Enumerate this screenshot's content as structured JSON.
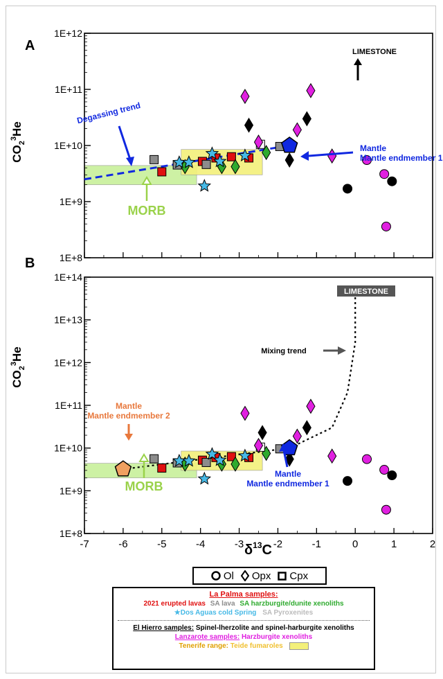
{
  "chart_data": [
    {
      "panel": "A",
      "type": "scatter",
      "xlabel": "",
      "ylabel": "CO2/3He",
      "xlim": [
        -7,
        2
      ],
      "ylim": [
        100000000.0,
        1000000000000.0
      ],
      "yscale": "log",
      "yticks": [
        "1E+12",
        "1E+11",
        "1E+10",
        "1E+9",
        "1E+8"
      ],
      "annotations": [
        "LIMESTONE",
        "Degassing trend",
        "Mantle endmember 1",
        "MORB"
      ],
      "series": [
        {
          "name": "2021 erupted lavas",
          "marker": "square",
          "color": "#e01010",
          "points": [
            [
              -5,
              3400000000.0
            ],
            [
              -3.95,
              5200000000.0
            ],
            [
              -3.6,
              6000000000.0
            ],
            [
              -3.2,
              6300000000.0
            ],
            [
              -2.75,
              6000000000.0
            ]
          ]
        },
        {
          "name": "SA lava",
          "marker": "square",
          "color": "#8c8c8c",
          "points": [
            [
              -5.2,
              5600000000.0
            ],
            [
              -4.6,
              4500000000.0
            ],
            [
              -3.85,
              4600000000.0
            ],
            [
              -1.95,
              9600000000.0
            ]
          ]
        },
        {
          "name": "SA harzburgite/dunite xenoliths",
          "marker": "diamond",
          "color": "#2eaa2e",
          "points": [
            [
              -4.4,
              4200000000.0
            ],
            [
              -3.45,
              4200000000.0
            ],
            [
              -3.1,
              4200000000.0
            ],
            [
              -2.3,
              7500000000.0
            ]
          ]
        },
        {
          "name": "Dos Aguas cold Spring",
          "marker": "star",
          "color": "#46b9e6",
          "points": [
            [
              -4.55,
              5000000000.0
            ],
            [
              -4.3,
              5000000000.0
            ],
            [
              -3.7,
              7200000000.0
            ],
            [
              -3.5,
              5200000000.0
            ],
            [
              -2.85,
              6600000000.0
            ],
            [
              -3.9,
              1900000000.0
            ]
          ]
        },
        {
          "name": "SA Pyroxenites",
          "marker": "square",
          "color": "#ffffff",
          "points": [
            [
              -2.45,
              10500000000.0
            ]
          ]
        },
        {
          "name": "El Hierro samples",
          "marker": "mixed",
          "color": "#000000",
          "points": [
            [
              -2.75,
              23000000000.0
            ],
            [
              -1.25,
              30000000000.0
            ],
            [
              -0.2,
              1700000000.0
            ],
            [
              0.95,
              2300000000.0
            ],
            [
              -1.7,
              5500000000.0
            ]
          ]
        },
        {
          "name": "Lanzarote samples",
          "marker": "mixed",
          "color": "#e020e0",
          "points": [
            [
              -2.85,
              75000000000.0
            ],
            [
              -1.15,
              95000000000.0
            ],
            [
              -2.5,
              11500000000.0
            ],
            [
              -1.5,
              19000000000.0
            ],
            [
              -0.6,
              6500000000.0
            ],
            [
              0.3,
              5500000000.0
            ],
            [
              0.75,
              3100000000.0
            ],
            [
              0.8,
              360000000.0
            ]
          ]
        },
        {
          "name": "Mantle endmember 1",
          "marker": "pentagon",
          "color": "#1028e0",
          "points": [
            [
              -1.7,
              10000000000.0
            ]
          ]
        }
      ],
      "ranges": [
        {
          "name": "MORB",
          "x": [
            -7,
            -4.1
          ],
          "y": [
            2000000000.0,
            4400000000.0
          ],
          "color": "#c8f09a"
        },
        {
          "name": "Tenerife range",
          "x": [
            -4.5,
            -2.4
          ],
          "y": [
            3000000000.0,
            8500000000.0
          ],
          "color": "#f3f07a"
        }
      ],
      "lines": [
        {
          "name": "Degassing trend",
          "style": "dashed",
          "color": "#1028e0",
          "points": [
            [
              -7,
              2500000000.0
            ],
            [
              -1.7,
              10000000000.0
            ]
          ]
        }
      ]
    },
    {
      "panel": "B",
      "type": "scatter",
      "xlabel": "δ13C",
      "ylabel": "CO2/3He",
      "xlim": [
        -7,
        2
      ],
      "ylim": [
        100000000.0,
        100000000000000.0
      ],
      "yscale": "log",
      "yticks": [
        "1E+14",
        "1E+13",
        "1E+12",
        "1E+11",
        "1E+10",
        "1E+9",
        "1E+8"
      ],
      "xticks": [
        "-7",
        "-6",
        "-5",
        "-4",
        "-3",
        "-2",
        "-1",
        "0",
        "1",
        "2"
      ],
      "annotations": [
        "LIMESTONE",
        "Mixing trend",
        "Mantle endmember 2",
        "Mantle endmember 1",
        "MORB"
      ],
      "series": [
        {
          "name": "2021 erupted lavas",
          "marker": "square",
          "color": "#e01010",
          "points": [
            [
              -5,
              3400000000.0
            ],
            [
              -3.95,
              5200000000.0
            ],
            [
              -3.6,
              6000000000.0
            ],
            [
              -3.2,
              6300000000.0
            ],
            [
              -2.75,
              6000000000.0
            ]
          ]
        },
        {
          "name": "SA lava",
          "marker": "square",
          "color": "#8c8c8c",
          "points": [
            [
              -5.2,
              5600000000.0
            ],
            [
              -4.6,
              4500000000.0
            ],
            [
              -3.85,
              4600000000.0
            ],
            [
              -1.95,
              9600000000.0
            ]
          ]
        },
        {
          "name": "SA harzburgite/dunite xenoliths",
          "marker": "diamond",
          "color": "#2eaa2e",
          "points": [
            [
              -4.4,
              4200000000.0
            ],
            [
              -3.45,
              4200000000.0
            ],
            [
              -3.1,
              4200000000.0
            ],
            [
              -2.3,
              7500000000.0
            ]
          ]
        },
        {
          "name": "Dos Aguas cold Spring",
          "marker": "star",
          "color": "#46b9e6",
          "points": [
            [
              -4.55,
              5000000000.0
            ],
            [
              -4.3,
              5000000000.0
            ],
            [
              -3.7,
              7200000000.0
            ],
            [
              -3.5,
              5200000000.0
            ],
            [
              -2.85,
              6600000000.0
            ],
            [
              -3.9,
              1900000000.0
            ]
          ]
        },
        {
          "name": "SA Pyroxenites",
          "marker": "square",
          "color": "#ffffff",
          "points": [
            [
              -2.45,
              10500000000.0
            ]
          ]
        },
        {
          "name": "El Hierro samples",
          "marker": "mixed",
          "color": "#000000",
          "points": [
            [
              -2.4,
              23000000000.0
            ],
            [
              -1.25,
              30000000000.0
            ],
            [
              -0.2,
              1700000000.0
            ],
            [
              0.95,
              2300000000.0
            ],
            [
              -1.7,
              5500000000.0
            ]
          ]
        },
        {
          "name": "Lanzarote samples",
          "marker": "mixed",
          "color": "#e020e0",
          "points": [
            [
              -2.85,
              65000000000.0
            ],
            [
              -1.15,
              95000000000.0
            ],
            [
              -2.5,
              11500000000.0
            ],
            [
              -1.5,
              19000000000.0
            ],
            [
              -0.6,
              6500000000.0
            ],
            [
              0.3,
              5500000000.0
            ],
            [
              0.75,
              3100000000.0
            ],
            [
              0.8,
              360000000.0
            ]
          ]
        },
        {
          "name": "Mantle endmember 1",
          "marker": "pentagon",
          "color": "#1028e0",
          "points": [
            [
              -1.7,
              10000000000.0
            ]
          ]
        },
        {
          "name": "Mantle endmember 2",
          "marker": "pentagon",
          "color": "#f0a060",
          "points": [
            [
              -6,
              3200000000.0
            ]
          ]
        }
      ],
      "ranges": [
        {
          "name": "MORB",
          "x": [
            -7,
            -4.1
          ],
          "y": [
            2000000000.0,
            4400000000.0
          ],
          "color": "#c8f09a"
        },
        {
          "name": "Tenerife range",
          "x": [
            -4.5,
            -2.4
          ],
          "y": [
            3000000000.0,
            8500000000.0
          ],
          "color": "#f3f07a"
        }
      ],
      "lines": [
        {
          "name": "Mantle endmember 2 to 1",
          "style": "dotted",
          "color": "#000000",
          "points": [
            [
              -6,
              3200000000.0
            ],
            [
              -1.7,
              10000000000.0
            ]
          ]
        },
        {
          "name": "Mixing trend",
          "style": "dotted",
          "color": "#000000",
          "points": [
            [
              -1.7,
              10000000000.0
            ],
            [
              -0.6,
              30000000000.0
            ],
            [
              -0.2,
              200000000000.0
            ],
            [
              0,
              3000000000000.0
            ],
            [
              0,
              40000000000000.0
            ]
          ]
        }
      ]
    }
  ],
  "panels": {
    "a": {
      "label": "A",
      "ylabel_main": "CO",
      "ylabel_sub": "2",
      "ylabel_sup": "3",
      "ylabel_tail": "He",
      "ann_limestone": "LIMESTONE",
      "ann_degassing": "Degassing trend",
      "ann_mantle1": "Mantle endmember 1",
      "ann_morb": "MORB"
    },
    "b": {
      "label": "B",
      "ylabel_main": "CO",
      "ylabel_sub": "2",
      "ylabel_sup": "3",
      "ylabel_tail": "He",
      "ann_limestone": "LIMESTONE",
      "ann_mixing": "Mixing trend",
      "ann_mantle2": "Mantle endmember 2",
      "ann_mantle1": "Mantle endmember 1",
      "ann_morb": "MORB",
      "xlabel_main": "δ",
      "xlabel_sup": "13",
      "xlabel_tail": "C"
    }
  },
  "legend": {
    "shapes": {
      "ol": "Ol",
      "opx": "Opx",
      "cpx": "Cpx"
    },
    "la_palma_title": "La Palma samples:",
    "lavas": "2021 erupted lavas",
    "sa_lava": "SA lava",
    "sa_xenoliths": "SA harzburgite/dunite xenoliths",
    "dos_aguas": "Dos Aguas cold Spring",
    "pyroxenites": "SA Pyroxenites",
    "el_hierro_title": "El Hierro samples:",
    "el_hierro_text": "Spinel-lherzolite and spinel-harburgite xenoliths",
    "lanzarote_title": "Lanzarote samples:",
    "lanzarote_text": "Harzburgite xenoliths",
    "tenerife_title": "Tenerife range:",
    "tenerife_text": "Teide fumaroles"
  },
  "colors": {
    "red": "#e01010",
    "grey": "#8c8c8c",
    "green": "#2eaa2e",
    "cyan": "#46b9e6",
    "black": "#000000",
    "magenta": "#e020e0",
    "blue": "#1028e0",
    "orange": "#f0a060",
    "morb": "#c8f09a",
    "tenerife": "#f3f07a",
    "lanzarote": "#e020e0",
    "tenerife_text": "#e0a000",
    "morb_text": "#9ad24a",
    "mantle2_text": "#e8783c"
  }
}
